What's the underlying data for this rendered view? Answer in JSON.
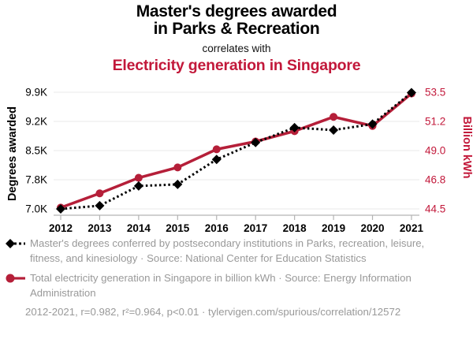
{
  "header": {
    "title_line1": "Master's degrees awarded",
    "title_line2": "in Parks & Recreation",
    "connector": "correlates with",
    "subtitle": "Electricity generation in Singapore"
  },
  "colors": {
    "accent_red": "#c2183a",
    "line_red": "#b51f39",
    "series_black": "#000000",
    "legend_gray": "#999999",
    "gridline_gray": "#eaeaea",
    "axis_gray": "#b3b3b3"
  },
  "chart_data": {
    "type": "line",
    "title": "Master's degrees awarded in Parks & Recreation correlates with Electricity generation in Singapore",
    "x": [
      2012,
      2013,
      2014,
      2015,
      2016,
      2017,
      2018,
      2019,
      2020,
      2021
    ],
    "series": [
      {
        "name": "Master's degrees awarded in Parks & Recreation",
        "axis": "left",
        "line_style": "dotted",
        "marker": "diamond",
        "color": "#000000",
        "values": [
          7000,
          7080,
          7570,
          7610,
          8230,
          8650,
          9020,
          8960,
          9110,
          9890
        ]
      },
      {
        "name": "Electricity generation in Singapore",
        "axis": "right",
        "line_style": "solid",
        "marker": "circle",
        "color": "#b51f39",
        "values": [
          44.6,
          45.7,
          46.9,
          47.7,
          49.1,
          49.7,
          50.5,
          51.6,
          50.9,
          53.4
        ]
      }
    ],
    "left_axis": {
      "label": "Degrees awarded",
      "tick_labels": [
        "7.0K",
        "7.8K",
        "8.5K",
        "9.2K",
        "9.9K"
      ],
      "range": [
        7000,
        9900
      ]
    },
    "right_axis": {
      "label": "Billion kWh",
      "tick_labels": [
        "44.5",
        "46.8",
        "49.0",
        "51.2",
        "53.5"
      ],
      "range": [
        44.5,
        53.5
      ]
    },
    "grid": "horizontal",
    "legend_position": "bottom"
  },
  "legend": {
    "items": [
      {
        "marker": "black-diamond-dotted",
        "text": "Master's degrees conferred by postsecondary institutions in Parks, recreation, leisure, fitness, and kinesiology · Source: National Center for Education Statistics"
      },
      {
        "marker": "red-circle-solid",
        "text": "Total electricity generation in Singapore in billion kWh · Source: Energy Information Administration"
      }
    ],
    "footer": "2012-2021, r=0.982, r²=0.964, p<0.01 · tylervigen.com/spurious/correlation/12572"
  }
}
